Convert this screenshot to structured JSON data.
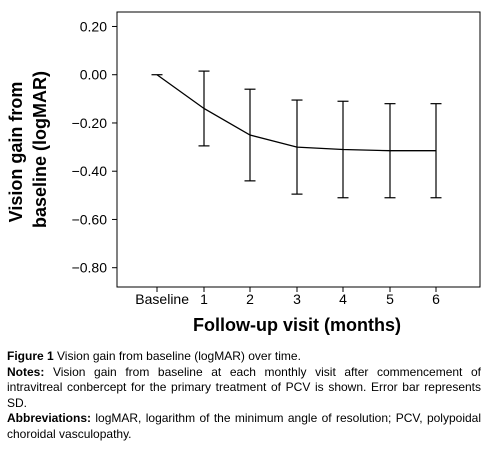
{
  "chart_data": {
    "type": "line",
    "xlabel": "Follow-up visit (months)",
    "ylabel_lines": [
      "Vision gain from",
      "baseline (logMAR)"
    ],
    "categories": [
      "Baseline",
      "1",
      "2",
      "3",
      "4",
      "5",
      "6"
    ],
    "series": [
      {
        "values": [
          0.0,
          -0.14,
          -0.25,
          -0.3,
          -0.31,
          -0.315,
          -0.315
        ],
        "error_sd": [
          0.0,
          0.155,
          0.19,
          0.195,
          0.2,
          0.195,
          0.195
        ]
      }
    ],
    "yticks": [
      0.2,
      0.0,
      -0.2,
      -0.4,
      -0.6,
      -0.8
    ],
    "ytick_labels": [
      "0.20",
      "0.00",
      "−0.20",
      "−0.40",
      "−0.60",
      "−0.80"
    ],
    "ylim": [
      -0.88,
      0.26
    ],
    "grid": false
  },
  "caption": {
    "figure_label": "Figure 1",
    "figure_text": " Vision gain from baseline (logMAR) over time.",
    "notes_label": "Notes:",
    "notes_text": " Vision gain from baseline at each monthly visit after commencement of intravitreal conbercept for the primary treatment of PCV is shown. Error bar represents SD.",
    "abbrev_label": "Abbreviations:",
    "abbrev_text": " logMAR, logarithm of the minimum angle of resolution; PCV, polypoidal choroidal vasculopathy."
  }
}
